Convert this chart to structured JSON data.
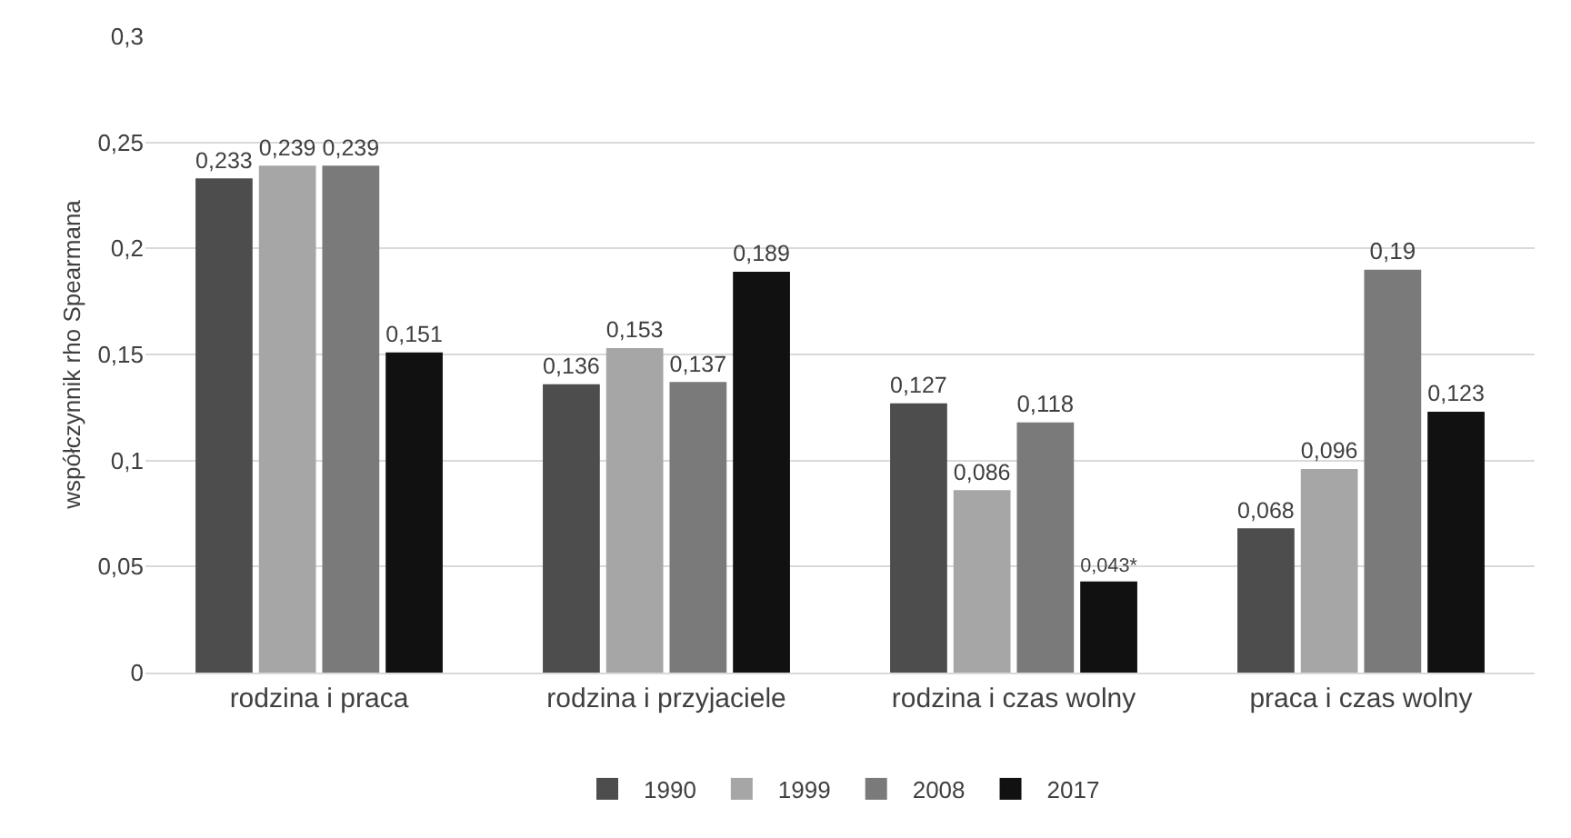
{
  "chart_data": {
    "type": "bar",
    "ylabel": "współczynnik rho Spearmana",
    "categories": [
      "rodzina i praca",
      "rodzina i przyjaciele",
      "rodzina i czas wolny",
      "praca i czas wolny"
    ],
    "series": [
      {
        "name": "1990",
        "color": "#4d4d4d",
        "values": [
          0.233,
          0.136,
          0.127,
          0.068
        ],
        "value_labels": [
          "0,233",
          "0,136",
          "0,127",
          "0,068"
        ]
      },
      {
        "name": "1999",
        "color": "#a6a6a6",
        "values": [
          0.239,
          0.153,
          0.086,
          0.096
        ],
        "value_labels": [
          "0,239",
          "0,153",
          "0,086",
          "0,096"
        ]
      },
      {
        "name": "2008",
        "color": "#7a7a7a",
        "values": [
          0.239,
          0.137,
          0.118,
          0.19
        ],
        "value_labels": [
          "0,239",
          "0,137",
          "0,118",
          "0,19"
        ]
      },
      {
        "name": "2017",
        "color": "#111111",
        "values": [
          0.151,
          0.189,
          0.043,
          0.123
        ],
        "value_labels": [
          "0,151",
          "0,189",
          "0,043*",
          "0,123"
        ]
      }
    ],
    "ylim": [
      0,
      0.3
    ],
    "yticks": [
      {
        "value": 0,
        "label": "0"
      },
      {
        "value": 0.05,
        "label": "0,05"
      },
      {
        "value": 0.1,
        "label": "0,1"
      },
      {
        "value": 0.15,
        "label": "0,15"
      },
      {
        "value": 0.2,
        "label": "0,2"
      },
      {
        "value": 0.25,
        "label": "0,25"
      },
      {
        "value": 0.3,
        "label": "0,3"
      }
    ],
    "grid": "y",
    "legend": "bottom"
  }
}
